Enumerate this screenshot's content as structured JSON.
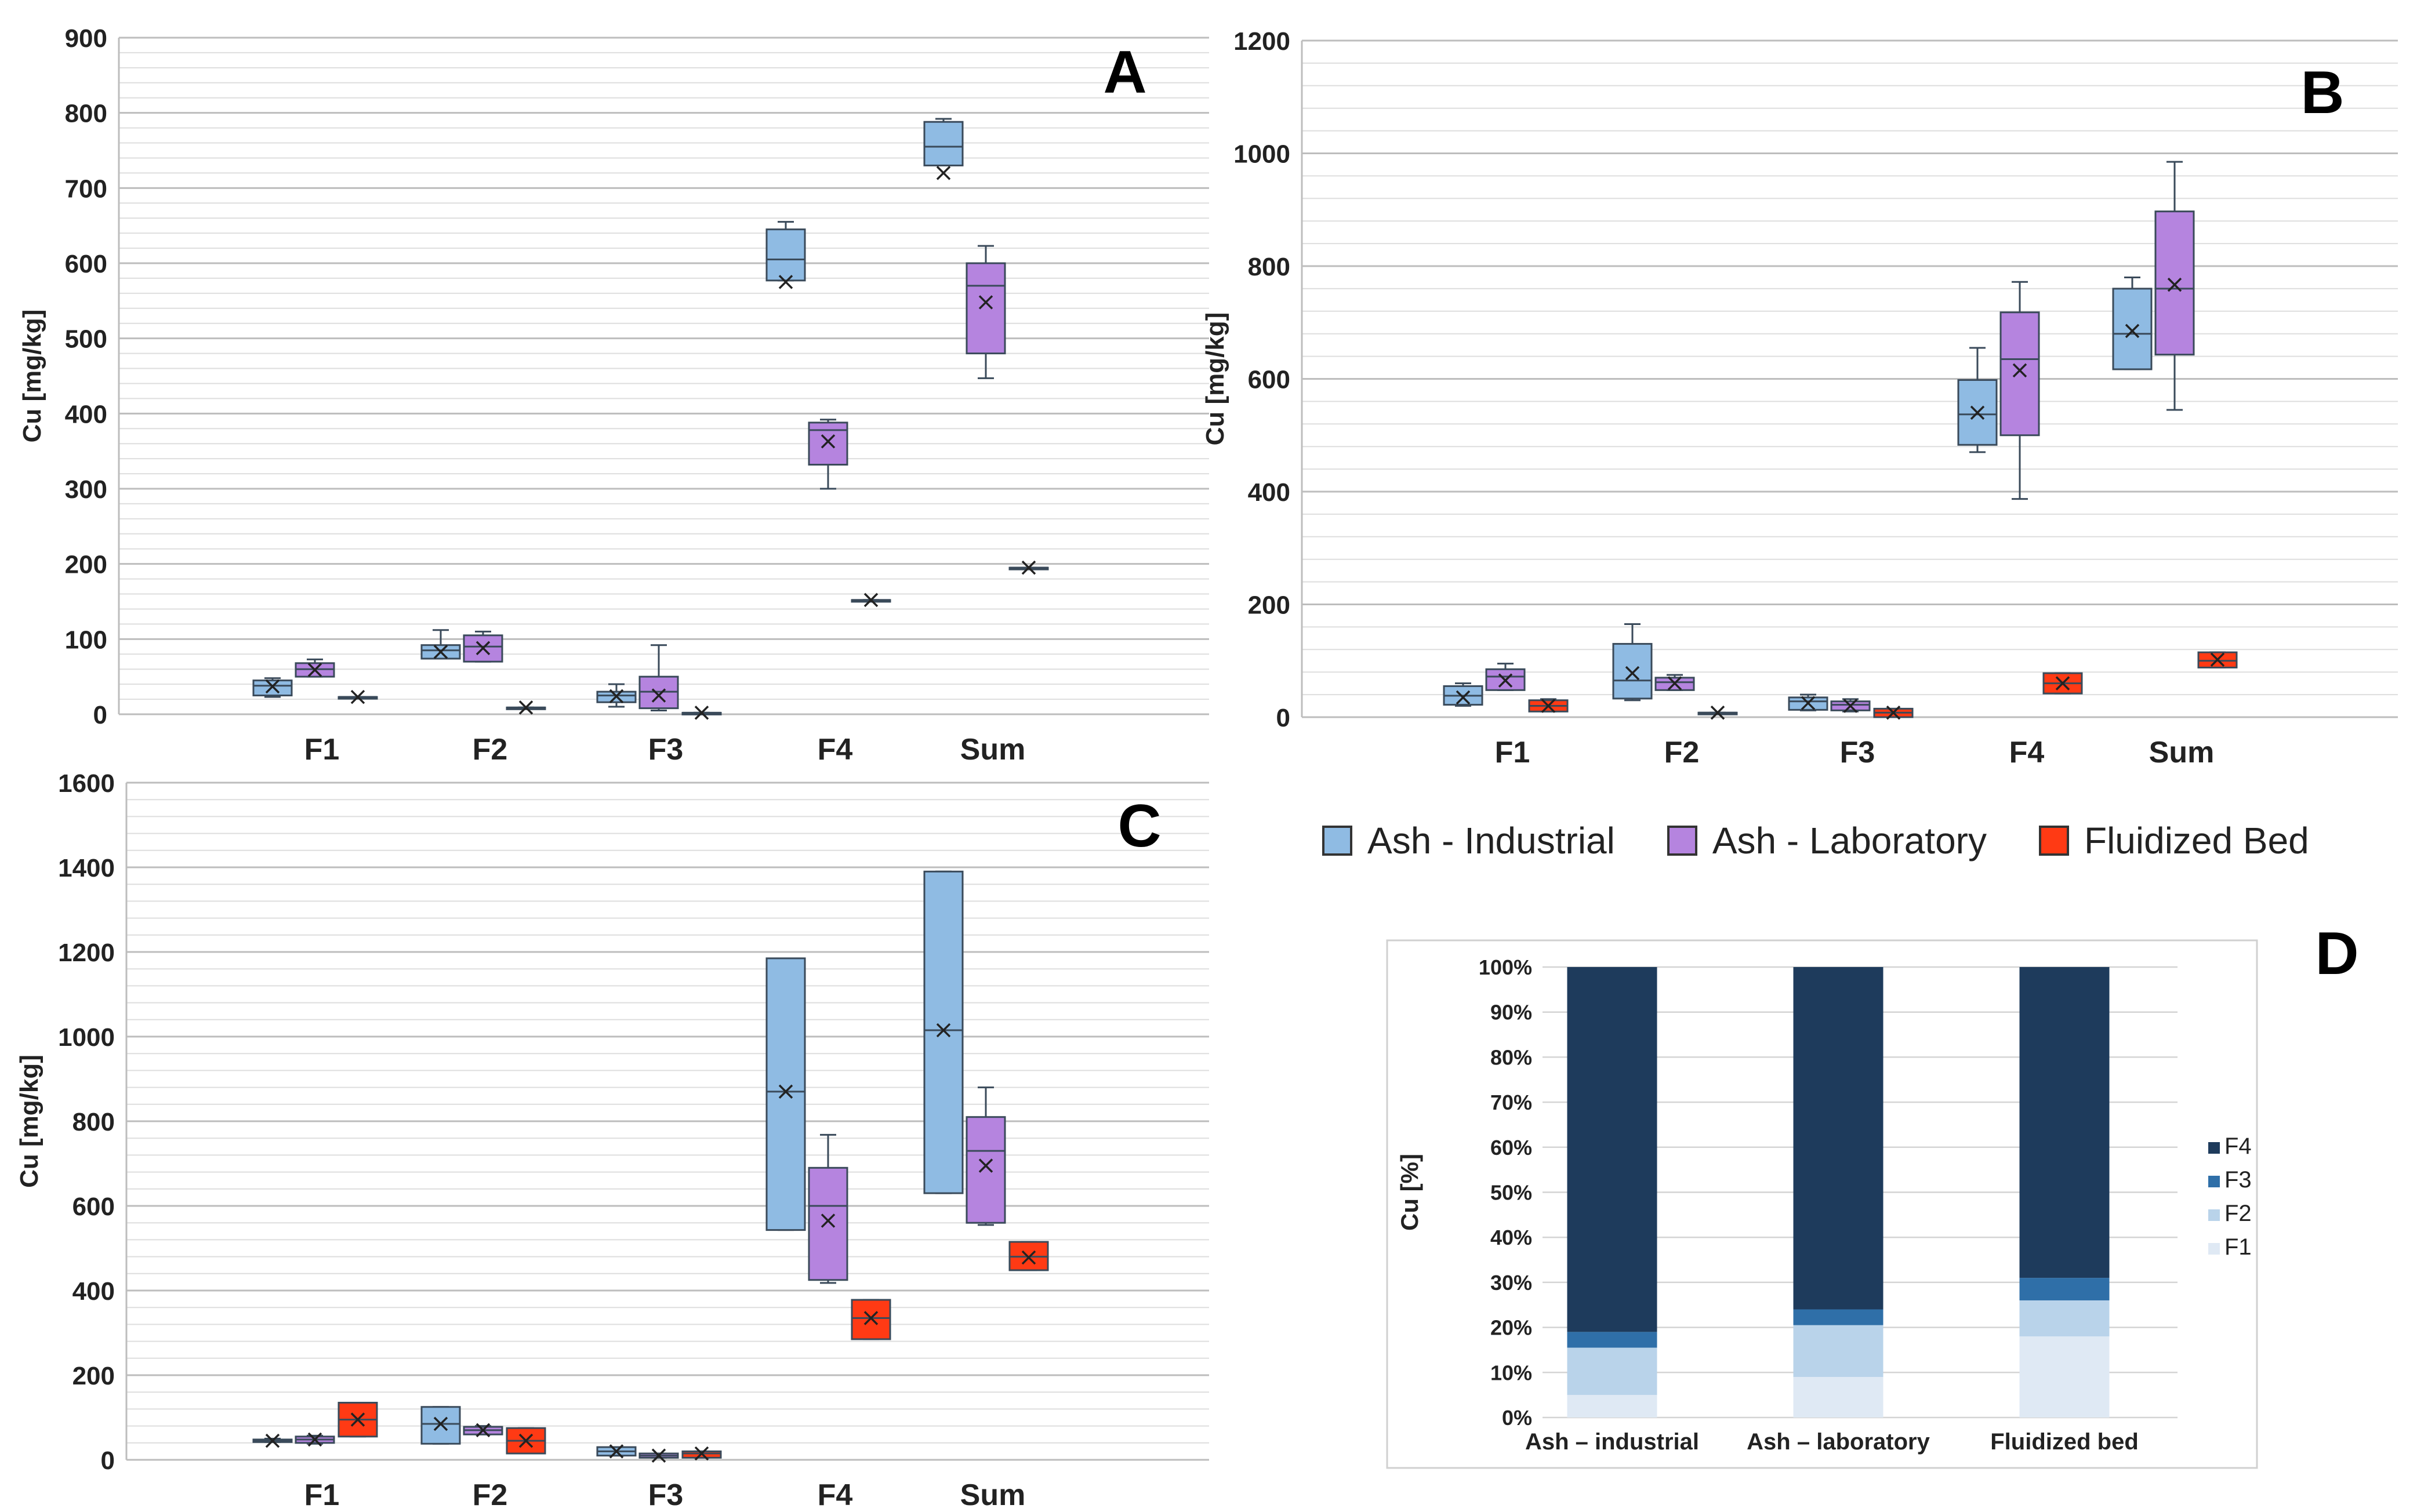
{
  "figure": {
    "series_legend": [
      {
        "name": "Ash - Industrial",
        "color": "#8fbbe3"
      },
      {
        "name": "Ash - Laboratory",
        "color": "#b584df"
      },
      {
        "name": "Fluidized Bed",
        "color": "#ff3a14"
      }
    ],
    "colors": {
      "grid": "#c8c8c8",
      "axis_text": "#222222",
      "stroke": "#3a4a5a",
      "d_F4": "#1e3b5c",
      "d_F3": "#2f6fa8",
      "d_F2": "#b9d3ea",
      "d_F1": "#dfe9f4"
    }
  },
  "chart_data": [
    {
      "panel": "A",
      "type": "box",
      "ylabel": "Cu [mg/kg]",
      "ylim": [
        0,
        900
      ],
      "yticks": [
        0,
        100,
        200,
        300,
        400,
        500,
        600,
        700,
        800,
        900
      ],
      "categories": [
        "F1",
        "F2",
        "F3",
        "F4",
        "Sum"
      ],
      "series": [
        {
          "name": "Ash - Industrial",
          "boxes": [
            {
              "min": 23,
              "q1": 25,
              "median": 38,
              "q3": 45,
              "max": 48,
              "mean": 37
            },
            {
              "min": 74,
              "q1": 74,
              "median": 85,
              "q3": 92,
              "max": 112,
              "mean": 83
            },
            {
              "min": 10,
              "q1": 16,
              "median": 25,
              "q3": 30,
              "max": 40,
              "mean": 24
            },
            {
              "min": 577,
              "q1": 577,
              "median": 605,
              "q3": 645,
              "max": 655,
              "mean": 575
            },
            {
              "min": 730,
              "q1": 730,
              "median": 755,
              "q3": 788,
              "max": 792,
              "mean": 720
            }
          ]
        },
        {
          "name": "Ash - Laboratory",
          "boxes": [
            {
              "min": 50,
              "q1": 50,
              "median": 60,
              "q3": 68,
              "max": 73,
              "mean": 59
            },
            {
              "min": 70,
              "q1": 70,
              "median": 90,
              "q3": 105,
              "max": 110,
              "mean": 88
            },
            {
              "min": 5,
              "q1": 8,
              "median": 30,
              "q3": 50,
              "max": 92,
              "mean": 25
            },
            {
              "min": 300,
              "q1": 332,
              "median": 378,
              "q3": 388,
              "max": 392,
              "mean": 363
            },
            {
              "min": 447,
              "q1": 480,
              "median": 570,
              "q3": 600,
              "max": 623,
              "mean": 548
            }
          ]
        },
        {
          "name": "Fluidized Bed",
          "boxes": [
            {
              "min": 23,
              "q1": 23,
              "median": 23,
              "q3": 23,
              "max": 23,
              "mean": 23
            },
            {
              "min": 9,
              "q1": 9,
              "median": 9,
              "q3": 9,
              "max": 9,
              "mean": 9
            },
            {
              "min": 2,
              "q1": 2,
              "median": 2,
              "q3": 2,
              "max": 2,
              "mean": 2
            },
            {
              "min": 152,
              "q1": 152,
              "median": 152,
              "q3": 152,
              "max": 152,
              "mean": 152
            },
            {
              "min": 195,
              "q1": 195,
              "median": 195,
              "q3": 195,
              "max": 195,
              "mean": 195
            }
          ]
        }
      ]
    },
    {
      "panel": "B",
      "type": "box",
      "ylabel": "Cu [mg/kg]",
      "ylim": [
        0,
        1200
      ],
      "yticks": [
        0,
        200,
        400,
        600,
        800,
        1000,
        1200
      ],
      "categories": [
        "F1",
        "F2",
        "F3",
        "F4",
        "Sum"
      ],
      "series": [
        {
          "name": "Ash - Industrial",
          "boxes": [
            {
              "min": 20,
              "q1": 22,
              "median": 38,
              "q3": 55,
              "max": 60,
              "mean": 35
            },
            {
              "min": 30,
              "q1": 33,
              "median": 65,
              "q3": 130,
              "max": 165,
              "mean": 78
            },
            {
              "min": 12,
              "q1": 13,
              "median": 28,
              "q3": 35,
              "max": 40,
              "mean": 25
            },
            {
              "min": 470,
              "q1": 483,
              "median": 537,
              "q3": 598,
              "max": 655,
              "mean": 540
            },
            {
              "min": 617,
              "q1": 617,
              "median": 680,
              "q3": 760,
              "max": 780,
              "mean": 685
            }
          ]
        },
        {
          "name": "Ash - Laboratory",
          "boxes": [
            {
              "min": 48,
              "q1": 48,
              "median": 72,
              "q3": 85,
              "max": 95,
              "mean": 65
            },
            {
              "min": 48,
              "q1": 48,
              "median": 62,
              "q3": 70,
              "max": 75,
              "mean": 60
            },
            {
              "min": 10,
              "q1": 12,
              "median": 22,
              "q3": 28,
              "max": 32,
              "mean": 20
            },
            {
              "min": 387,
              "q1": 500,
              "median": 635,
              "q3": 718,
              "max": 772,
              "mean": 615
            },
            {
              "min": 545,
              "q1": 643,
              "median": 760,
              "q3": 897,
              "max": 985,
              "mean": 767
            }
          ]
        },
        {
          "name": "Fluidized Bed",
          "boxes": [
            {
              "min": 10,
              "q1": 10,
              "median": 20,
              "q3": 30,
              "max": 32,
              "mean": 20
            },
            {
              "min": 8,
              "q1": 8,
              "median": 8,
              "q3": 8,
              "max": 8,
              "mean": 8
            },
            {
              "min": 0,
              "q1": 0,
              "median": 8,
              "q3": 15,
              "max": 15,
              "mean": 8
            },
            {
              "min": 42,
              "q1": 42,
              "median": 60,
              "q3": 78,
              "max": 78,
              "mean": 60
            },
            {
              "min": 88,
              "q1": 88,
              "median": 100,
              "q3": 115,
              "max": 115,
              "mean": 102
            }
          ]
        }
      ]
    },
    {
      "panel": "C",
      "type": "box",
      "ylabel": "Cu [mg/kg]",
      "ylim": [
        0,
        1600
      ],
      "yticks": [
        0,
        200,
        400,
        600,
        800,
        1000,
        1200,
        1400,
        1600
      ],
      "categories": [
        "F1",
        "F2",
        "F3",
        "F4",
        "Sum"
      ],
      "series": [
        {
          "name": "Ash - Industrial",
          "boxes": [
            {
              "min": 42,
              "q1": 42,
              "median": 45,
              "q3": 48,
              "max": 50,
              "mean": 45
            },
            {
              "min": 38,
              "q1": 38,
              "median": 85,
              "q3": 125,
              "max": 125,
              "mean": 85
            },
            {
              "min": 10,
              "q1": 10,
              "median": 20,
              "q3": 30,
              "max": 30,
              "mean": 20
            },
            {
              "min": 543,
              "q1": 543,
              "median": 870,
              "q3": 1185,
              "max": 1185,
              "mean": 870
            },
            {
              "min": 630,
              "q1": 630,
              "median": 1015,
              "q3": 1390,
              "max": 1390,
              "mean": 1015
            }
          ]
        },
        {
          "name": "Ash - Laboratory",
          "boxes": [
            {
              "min": 38,
              "q1": 40,
              "median": 48,
              "q3": 55,
              "max": 57,
              "mean": 48
            },
            {
              "min": 60,
              "q1": 60,
              "median": 70,
              "q3": 78,
              "max": 80,
              "mean": 70
            },
            {
              "min": 5,
              "q1": 5,
              "median": 10,
              "q3": 15,
              "max": 15,
              "mean": 10
            },
            {
              "min": 418,
              "q1": 425,
              "median": 600,
              "q3": 690,
              "max": 768,
              "mean": 565
            },
            {
              "min": 555,
              "q1": 560,
              "median": 730,
              "q3": 810,
              "max": 880,
              "mean": 695
            }
          ]
        },
        {
          "name": "Fluidized Bed",
          "boxes": [
            {
              "min": 55,
              "q1": 55,
              "median": 95,
              "q3": 135,
              "max": 135,
              "mean": 95
            },
            {
              "min": 15,
              "q1": 15,
              "median": 45,
              "q3": 75,
              "max": 75,
              "mean": 45
            },
            {
              "min": 5,
              "q1": 5,
              "median": 15,
              "q3": 20,
              "max": 20,
              "mean": 15
            },
            {
              "min": 285,
              "q1": 285,
              "median": 335,
              "q3": 378,
              "max": 378,
              "mean": 335
            },
            {
              "min": 448,
              "q1": 448,
              "median": 480,
              "q3": 515,
              "max": 515,
              "mean": 478
            }
          ]
        }
      ]
    },
    {
      "panel": "D",
      "type": "stacked-bar",
      "ylabel": "Cu [%]",
      "ylim": [
        0,
        100
      ],
      "yticks": [
        "0%",
        "10%",
        "20%",
        "30%",
        "40%",
        "50%",
        "60%",
        "70%",
        "80%",
        "90%",
        "100%"
      ],
      "categories": [
        "Ash – industrial",
        "Ash – laboratory",
        "Fluidized bed"
      ],
      "legend": [
        "F4",
        "F3",
        "F2",
        "F1"
      ],
      "series": [
        {
          "name": "F1",
          "values": [
            5,
            9,
            18
          ]
        },
        {
          "name": "F2",
          "values": [
            10.5,
            11.5,
            8
          ]
        },
        {
          "name": "F3",
          "values": [
            3.5,
            3.5,
            5
          ]
        },
        {
          "name": "F4",
          "values": [
            81,
            76,
            69
          ]
        }
      ]
    }
  ]
}
